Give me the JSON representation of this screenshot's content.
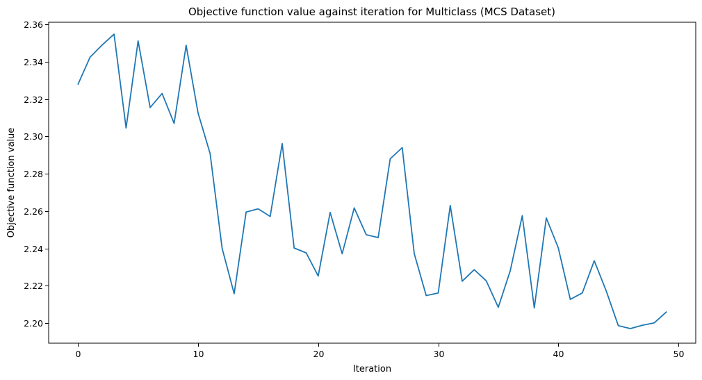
{
  "chart_data": {
    "type": "line",
    "title": "Objective function value against iteration for Multiclass (MCS Dataset)",
    "xlabel": "Iteration",
    "ylabel": "Objective function value",
    "xlim": [
      -2.45,
      51.45
    ],
    "ylim": [
      2.1892,
      2.3612
    ],
    "xticks": [
      0,
      10,
      20,
      30,
      40,
      50
    ],
    "yticks": [
      2.2,
      2.22,
      2.24,
      2.26,
      2.28,
      2.3,
      2.32,
      2.34,
      2.36
    ],
    "ytick_labels": [
      "2.20",
      "2.22",
      "2.24",
      "2.26",
      "2.28",
      "2.30",
      "2.32",
      "2.34",
      "2.36"
    ],
    "grid": false,
    "legend": "none",
    "series": [
      {
        "color": "#1f77b4",
        "x": [
          0,
          1,
          2,
          3,
          4,
          5,
          6,
          7,
          8,
          9,
          10,
          11,
          12,
          13,
          14,
          15,
          16,
          17,
          18,
          19,
          20,
          21,
          22,
          23,
          24,
          25,
          26,
          27,
          28,
          29,
          30,
          31,
          32,
          33,
          34,
          35,
          36,
          37,
          38,
          39,
          40,
          41,
          42,
          43,
          44,
          45,
          46,
          47,
          48,
          49
        ],
        "values": [
          2.328,
          2.3425,
          2.349,
          2.3548,
          2.3045,
          2.3512,
          2.3155,
          2.323,
          2.307,
          2.3488,
          2.3125,
          2.2908,
          2.24,
          2.2157,
          2.2595,
          2.2612,
          2.2571,
          2.2962,
          2.2402,
          2.2376,
          2.2252,
          2.2593,
          2.2371,
          2.2617,
          2.2473,
          2.2458,
          2.288,
          2.294,
          2.2372,
          2.2147,
          2.2161,
          2.263,
          2.2224,
          2.2286,
          2.2226,
          2.2084,
          2.228,
          2.2575,
          2.2081,
          2.2563,
          2.2403,
          2.2127,
          2.2161,
          2.2334,
          2.2171,
          2.1986,
          2.197,
          2.1988,
          2.2001,
          2.2059
        ]
      }
    ]
  }
}
